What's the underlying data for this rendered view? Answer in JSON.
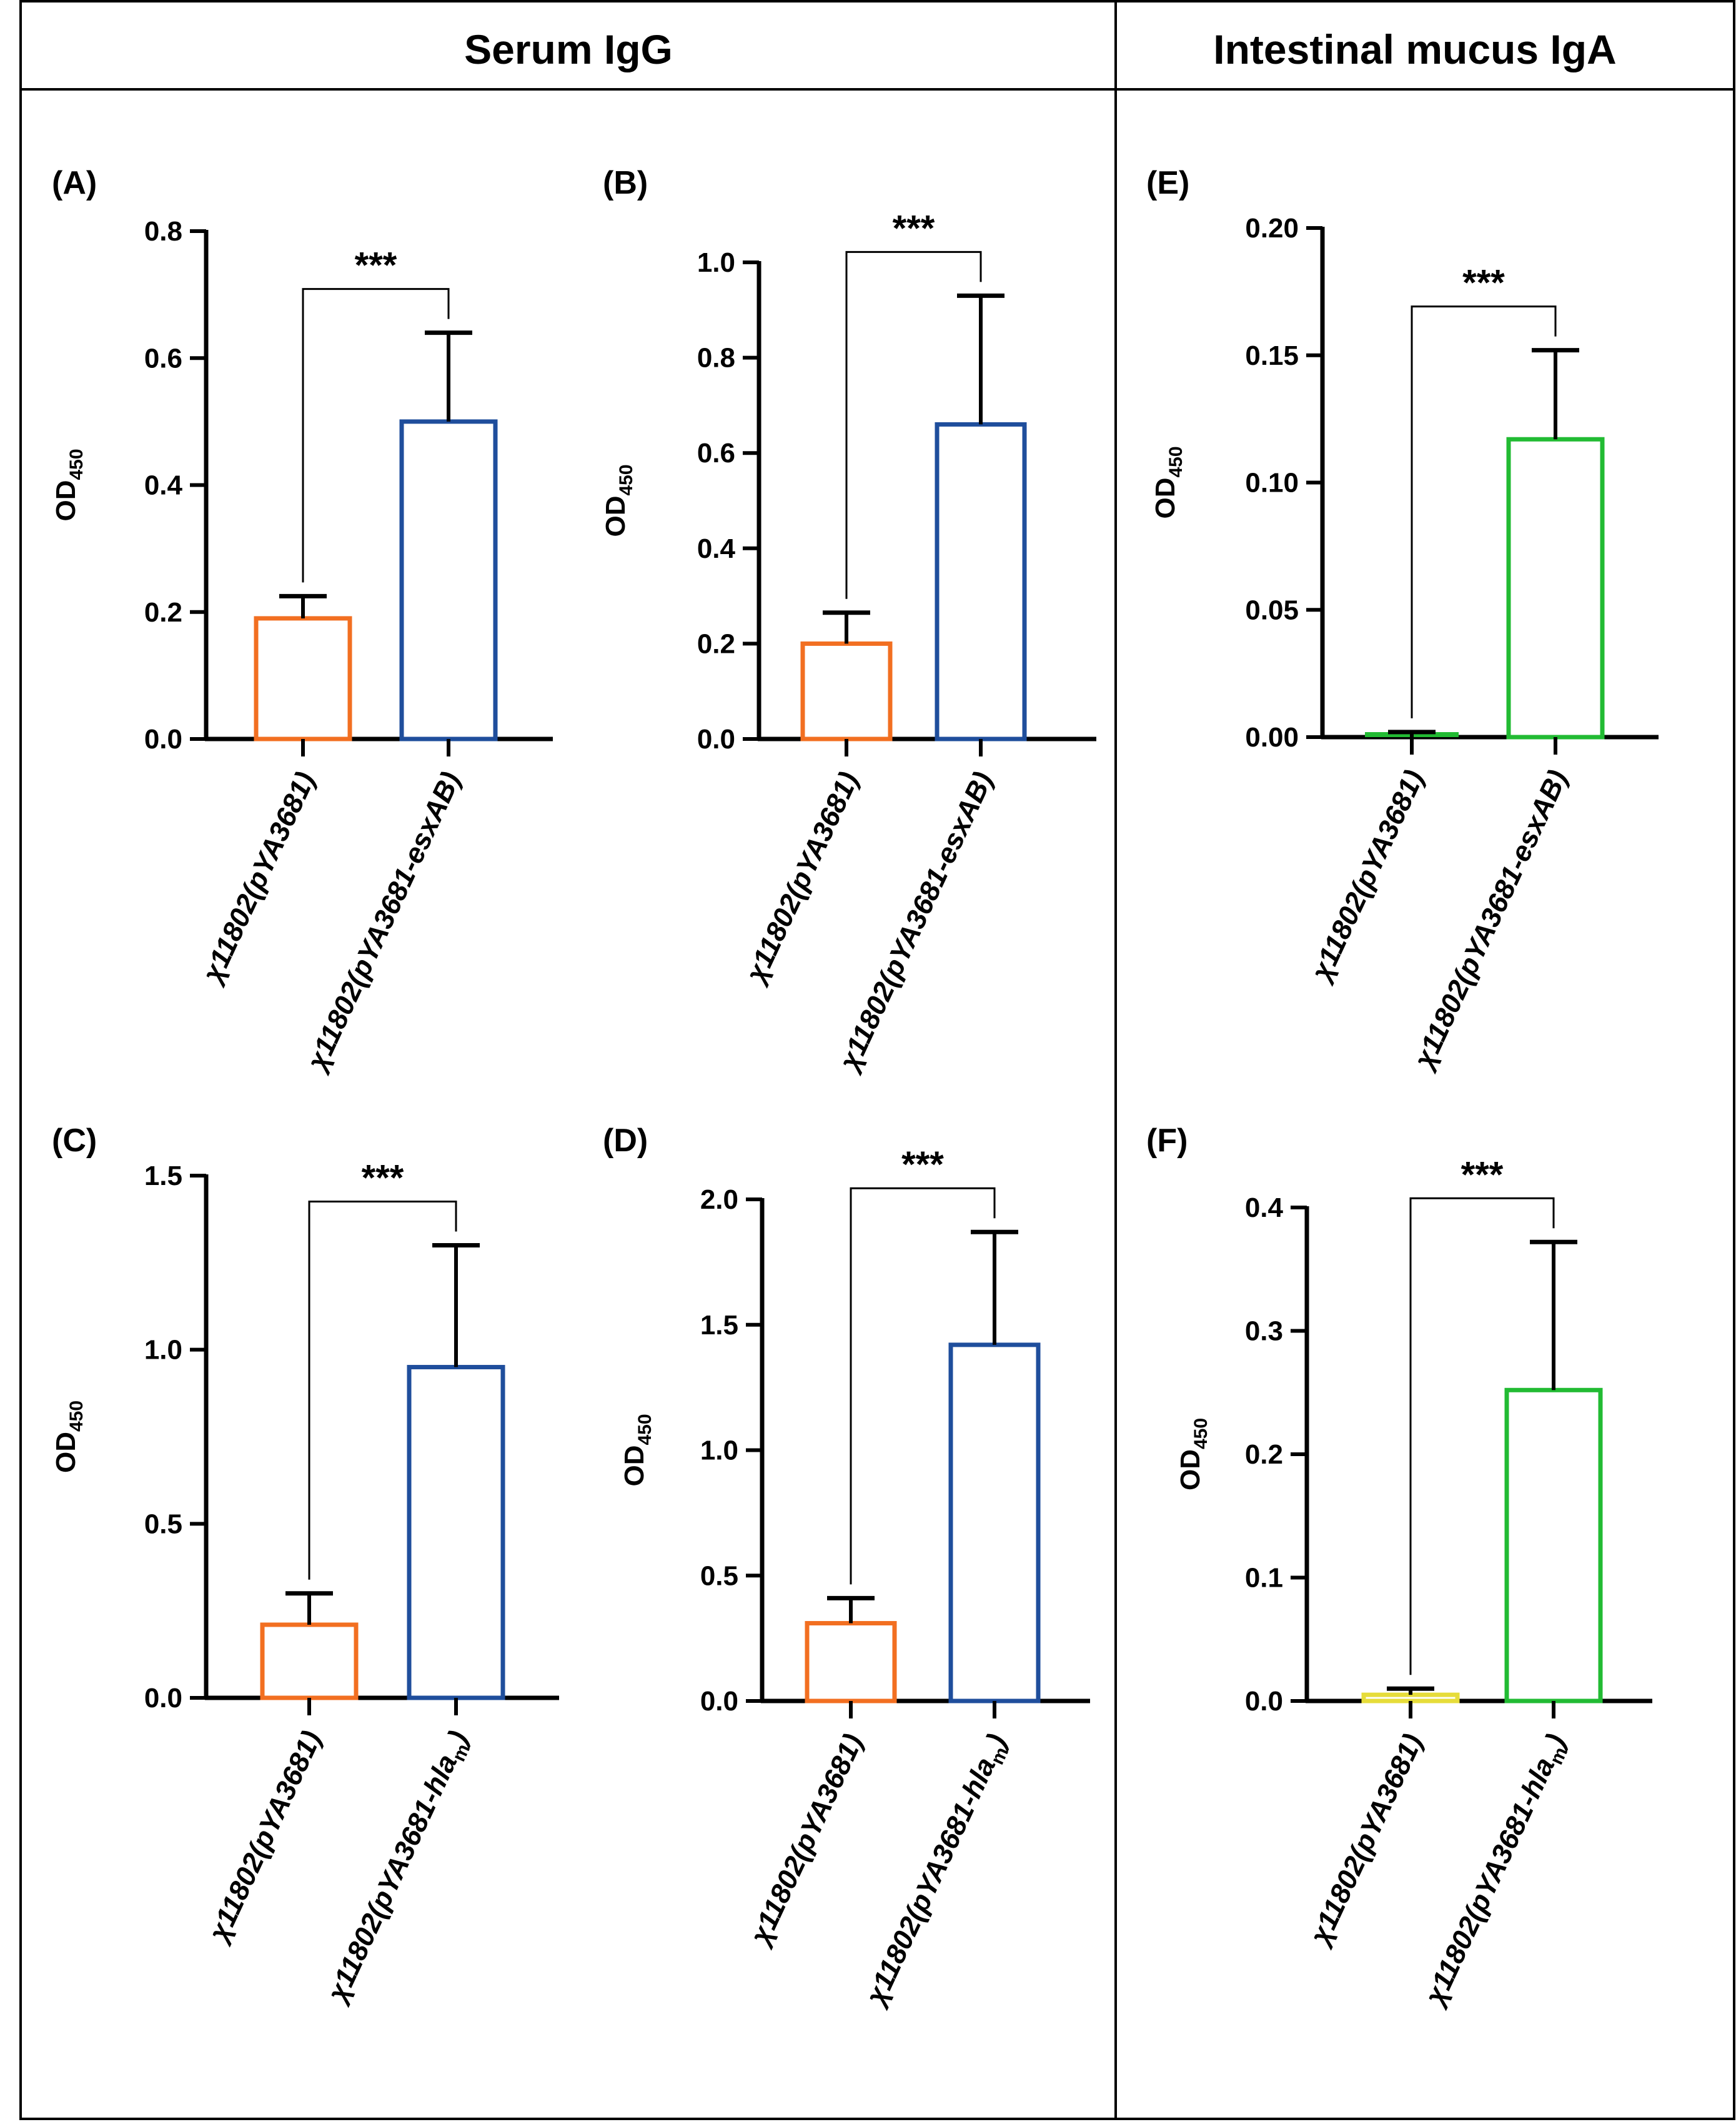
{
  "header": {
    "left_title": "Serum IgG",
    "right_title": "Intestinal mucus IgA"
  },
  "colors": {
    "orange": "#F26F21",
    "blue": "#1F4E9C",
    "green": "#22BB33",
    "yellow": "#E6DC3A",
    "axis": "#000000"
  },
  "chart_data": [
    {
      "panel": "(A)",
      "type": "bar",
      "ylabel": "OD",
      "ylabel_sub": "450",
      "ylim": [
        0,
        0.8
      ],
      "yticks": [
        "0.0",
        "0.2",
        "0.4",
        "0.6",
        "0.8"
      ],
      "categories": [
        {
          "prefix": "χ11802(pYA3681",
          "gene": "",
          "sub": "",
          "suffix": ")"
        },
        {
          "prefix": "χ11802(pYA3681-",
          "gene": "esxAB",
          "sub": "",
          "suffix": ")"
        }
      ],
      "values": [
        0.19,
        0.5
      ],
      "errors": [
        0.035,
        0.14
      ],
      "colors": [
        "orange",
        "blue"
      ],
      "significance": "***"
    },
    {
      "panel": "(B)",
      "type": "bar",
      "ylabel": "OD",
      "ylabel_sub": "450",
      "ylim": [
        0,
        1.0
      ],
      "yticks": [
        "0.0",
        "0.2",
        "0.4",
        "0.6",
        "0.8",
        "1.0"
      ],
      "categories": [
        {
          "prefix": "χ11802(pYA3681",
          "gene": "",
          "sub": "",
          "suffix": ")"
        },
        {
          "prefix": "χ11802(pYA3681-",
          "gene": "esxAB",
          "sub": "",
          "suffix": ")"
        }
      ],
      "values": [
        0.2,
        0.66
      ],
      "errors": [
        0.065,
        0.27
      ],
      "colors": [
        "orange",
        "blue"
      ],
      "significance": "***"
    },
    {
      "panel": "(E)",
      "type": "bar",
      "ylabel": "OD",
      "ylabel_sub": "450",
      "ylim": [
        0,
        0.2
      ],
      "yticks": [
        "0.00",
        "0.05",
        "0.10",
        "0.15",
        "0.20"
      ],
      "categories": [
        {
          "prefix": "χ11802(pYA3681",
          "gene": "",
          "sub": "",
          "suffix": ")"
        },
        {
          "prefix": "χ11802(pYA3681-",
          "gene": "esxAB",
          "sub": "",
          "suffix": ")"
        }
      ],
      "values": [
        0.0,
        0.117
      ],
      "errors": [
        0.002,
        0.035
      ],
      "colors": [
        "green",
        "green"
      ],
      "significance": "***"
    },
    {
      "panel": "(C)",
      "type": "bar",
      "ylabel": "OD",
      "ylabel_sub": "450",
      "ylim": [
        0,
        1.5
      ],
      "yticks": [
        "0.0",
        "0.5",
        "1.0",
        "1.5"
      ],
      "categories": [
        {
          "prefix": "χ11802(pYA3681",
          "gene": "",
          "sub": "",
          "suffix": ")"
        },
        {
          "prefix": "χ11802(pYA3681-",
          "gene": "hla",
          "sub": "m",
          "suffix": ")"
        }
      ],
      "values": [
        0.21,
        0.95
      ],
      "errors": [
        0.09,
        0.35
      ],
      "colors": [
        "orange",
        "blue"
      ],
      "significance": "***"
    },
    {
      "panel": "(D)",
      "type": "bar",
      "ylabel": "OD",
      "ylabel_sub": "450",
      "ylim": [
        0,
        2.0
      ],
      "yticks": [
        "0.0",
        "0.5",
        "1.0",
        "1.5",
        "2.0"
      ],
      "categories": [
        {
          "prefix": "χ11802(pYA3681",
          "gene": "",
          "sub": "",
          "suffix": ")"
        },
        {
          "prefix": "χ11802(pYA3681-",
          "gene": "hla",
          "sub": "m",
          "suffix": ")"
        }
      ],
      "values": [
        0.31,
        1.42
      ],
      "errors": [
        0.1,
        0.45
      ],
      "colors": [
        "orange",
        "blue"
      ],
      "significance": "***"
    },
    {
      "panel": "(F)",
      "type": "bar",
      "ylabel": "OD",
      "ylabel_sub": "450",
      "ylim": [
        0,
        0.4
      ],
      "yticks": [
        "0.0",
        "0.1",
        "0.2",
        "0.3",
        "0.4"
      ],
      "categories": [
        {
          "prefix": "χ11802(pYA3681",
          "gene": "",
          "sub": "",
          "suffix": ")"
        },
        {
          "prefix": "χ11802(pYA3681-",
          "gene": "hla",
          "sub": "m",
          "suffix": ")"
        }
      ],
      "values": [
        0.005,
        0.252
      ],
      "errors": [
        0.005,
        0.12
      ],
      "colors": [
        "yellow",
        "green"
      ],
      "significance": "***"
    }
  ]
}
